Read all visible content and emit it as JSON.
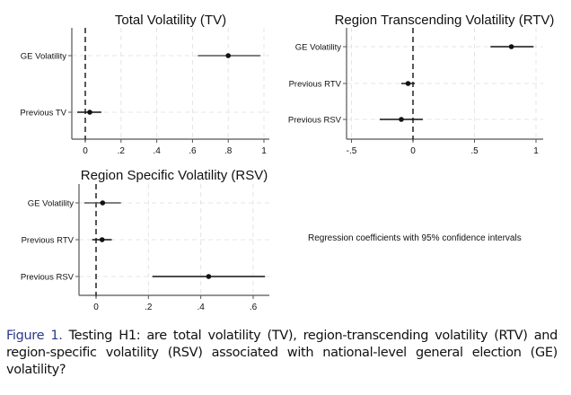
{
  "chart_data": [
    {
      "type": "scatter",
      "subtype": "coefficient-plot",
      "title": "Total Volatility (TV)",
      "xlabel": "",
      "ylabel": "",
      "xlim": [
        -0.08,
        1.02
      ],
      "xticks": [
        0,
        0.2,
        0.4,
        0.6,
        0.8,
        1
      ],
      "xtick_labels": [
        "0",
        ".2",
        ".4",
        ".6",
        ".8",
        "1"
      ],
      "reference_line": 0,
      "grid": true,
      "categories": [
        "GE Volatility",
        "Previous TV"
      ],
      "estimates": [
        0.8,
        0.025
      ],
      "ci_low": [
        0.63,
        -0.045
      ],
      "ci_high": [
        0.98,
        0.09
      ]
    },
    {
      "type": "scatter",
      "subtype": "coefficient-plot",
      "title": "Region Transcending Volatility (RTV)",
      "xlabel": "",
      "ylabel": "",
      "xlim": [
        -0.55,
        1.06
      ],
      "xticks": [
        -0.5,
        0,
        0.5,
        1
      ],
      "xtick_labels": [
        "-.5",
        "0",
        ".5",
        "1"
      ],
      "reference_line": 0,
      "grid": true,
      "categories": [
        "GE Volatility",
        "Previous RTV",
        "Previous RSV"
      ],
      "estimates": [
        0.8,
        -0.04,
        -0.095
      ],
      "ci_low": [
        0.63,
        -0.095,
        -0.27
      ],
      "ci_high": [
        0.98,
        0.015,
        0.08
      ]
    },
    {
      "type": "scatter",
      "subtype": "coefficient-plot",
      "title": "Region Specific Volatility (RSV)",
      "xlabel": "",
      "ylabel": "",
      "xlim": [
        -0.065,
        0.665
      ],
      "xticks": [
        0,
        0.2,
        0.4,
        0.6
      ],
      "xtick_labels": [
        "0",
        ".2",
        ".4",
        ".6"
      ],
      "reference_line": 0,
      "grid": true,
      "categories": [
        "GE Volatility",
        "Previous RTV",
        "Previous RSV"
      ],
      "estimates": [
        0.025,
        0.023,
        0.43
      ],
      "ci_low": [
        -0.045,
        -0.015,
        0.215
      ],
      "ci_high": [
        0.095,
        0.06,
        0.645
      ]
    }
  ],
  "note": "Regression coefficients with 95% confidence intervals",
  "caption": {
    "label": "Figure 1.",
    "text": " Testing H1: are total volatility (TV), region-transcending volatility (RTV) and region-specific volatility (RSV) associated with national-level general election (GE) volatility?"
  },
  "colors": {
    "caption_label": "#2b3a8c",
    "ci_line": "#111111",
    "ci_line_light": "#555555",
    "grid": "#e4e4e4",
    "axis": "#555555"
  }
}
